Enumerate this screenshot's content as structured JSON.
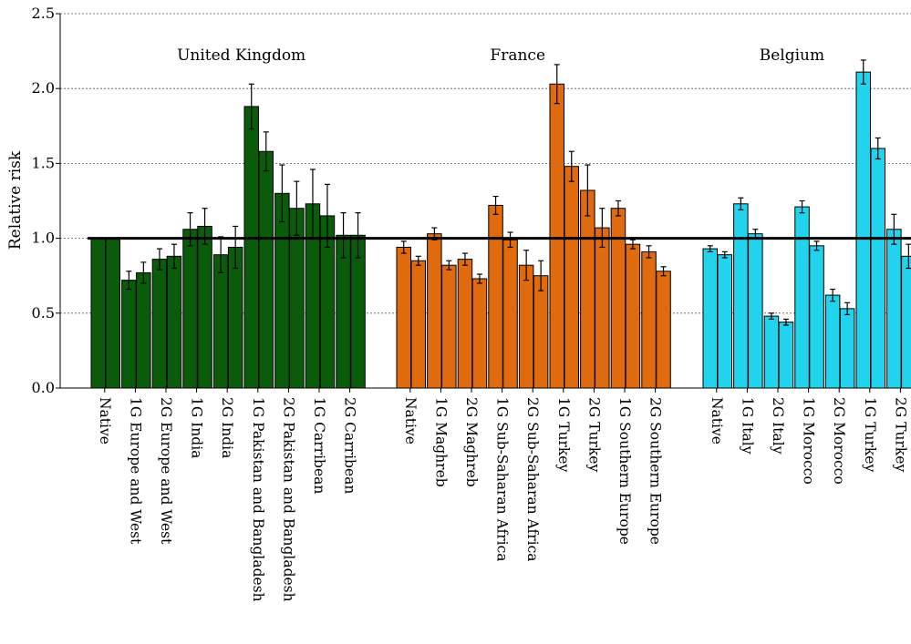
{
  "chart_data": {
    "type": "bar",
    "ylabel": "Relative risk",
    "ylim": [
      0,
      2.5
    ],
    "yticks": [
      "0.0",
      "0.5",
      "1.0",
      "1.5",
      "2.0",
      "2.5"
    ],
    "grid": "horizontal dotted",
    "reference_line": 1.0,
    "groups": [
      {
        "name": "United Kingdom",
        "color": "#0a5c0a",
        "categories": [
          {
            "label": "Native",
            "values": [
              1.0,
              1.0
            ],
            "err": [
              0,
              0
            ]
          },
          {
            "label": "1G Europe and West",
            "values": [
              0.72,
              0.77
            ],
            "err": [
              0.06,
              0.07
            ]
          },
          {
            "label": "2G Europe and West",
            "values": [
              0.86,
              0.88
            ],
            "err": [
              0.07,
              0.08
            ]
          },
          {
            "label": "1G India",
            "values": [
              1.06,
              1.08
            ],
            "err": [
              0.11,
              0.12
            ]
          },
          {
            "label": "2G India",
            "values": [
              0.89,
              0.94
            ],
            "err": [
              0.12,
              0.14
            ]
          },
          {
            "label": "1G Pakistan and Bangladesh",
            "values": [
              1.88,
              1.58
            ],
            "err": [
              0.15,
              0.13
            ]
          },
          {
            "label": "2G Pakistan and Bangladesh",
            "values": [
              1.3,
              1.2
            ],
            "err": [
              0.19,
              0.18
            ]
          },
          {
            "label": "1G Carribean",
            "values": [
              1.23,
              1.15
            ],
            "err": [
              0.23,
              0.21
            ]
          },
          {
            "label": "2G Carribean",
            "values": [
              1.02,
              1.02
            ],
            "err": [
              0.15,
              0.15
            ]
          }
        ]
      },
      {
        "name": "France",
        "color": "#e06b0e",
        "categories": [
          {
            "label": "Native",
            "values": [
              0.94,
              0.85
            ],
            "err": [
              0.04,
              0.03
            ]
          },
          {
            "label": "1G Maghreb",
            "values": [
              1.03,
              0.82
            ],
            "err": [
              0.04,
              0.03
            ]
          },
          {
            "label": "2G Maghreb",
            "values": [
              0.86,
              0.73
            ],
            "err": [
              0.04,
              0.03
            ]
          },
          {
            "label": "1G Sub-Saharan Africa",
            "values": [
              1.22,
              0.99
            ],
            "err": [
              0.06,
              0.05
            ]
          },
          {
            "label": "2G Sub-Saharan Africa",
            "values": [
              0.82,
              0.75
            ],
            "err": [
              0.1,
              0.1
            ]
          },
          {
            "label": "1G Turkey",
            "values": [
              2.03,
              1.48
            ],
            "err": [
              0.13,
              0.1
            ]
          },
          {
            "label": "2G Turkey",
            "values": [
              1.32,
              1.07
            ],
            "err": [
              0.17,
              0.13
            ]
          },
          {
            "label": "1G Southern Europe",
            "values": [
              1.2,
              0.96
            ],
            "err": [
              0.05,
              0.03
            ]
          },
          {
            "label": "2G Southern Europe",
            "values": [
              0.91,
              0.78
            ],
            "err": [
              0.04,
              0.03
            ]
          }
        ]
      },
      {
        "name": "Belgium",
        "color": "#22d3ee",
        "categories": [
          {
            "label": "Native",
            "values": [
              0.93,
              0.89
            ],
            "err": [
              0.02,
              0.02
            ]
          },
          {
            "label": "1G Italy",
            "values": [
              1.23,
              1.03
            ],
            "err": [
              0.04,
              0.03
            ]
          },
          {
            "label": "2G Italy",
            "values": [
              0.48,
              0.44
            ],
            "err": [
              0.02,
              0.02
            ]
          },
          {
            "label": "1G Morocco",
            "values": [
              1.21,
              0.95
            ],
            "err": [
              0.04,
              0.03
            ]
          },
          {
            "label": "2G Morocco",
            "values": [
              0.62,
              0.53
            ],
            "err": [
              0.04,
              0.04
            ]
          },
          {
            "label": "1G Turkey",
            "values": [
              2.11,
              1.6
            ],
            "err": [
              0.08,
              0.07
            ]
          },
          {
            "label": "2G Turkey",
            "values": [
              1.06,
              0.88
            ],
            "err": [
              0.1,
              0.08
            ]
          }
        ]
      }
    ]
  }
}
